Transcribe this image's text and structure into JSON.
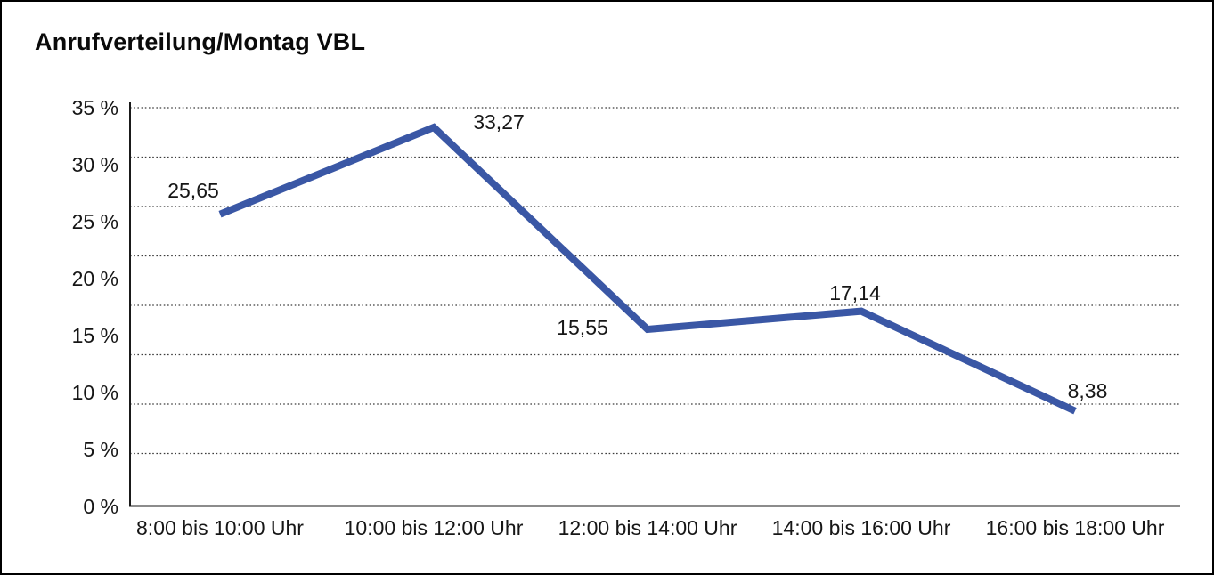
{
  "chart_data": {
    "type": "line",
    "title": "Anrufverteilung/Montag VBL",
    "categories": [
      "8:00 bis 10:00 Uhr",
      "10:00 bis 12:00 Uhr",
      "12:00 bis 14:00 Uhr",
      "14:00 bis 16:00 Uhr",
      "16:00 bis 18:00 Uhr"
    ],
    "values": [
      25.65,
      33.27,
      15.55,
      17.14,
      8.38
    ],
    "point_labels": [
      "25,65",
      "33,27",
      "15,55",
      "17,14",
      "8,38"
    ],
    "y_ticks": [
      "35 %",
      "30 %",
      "25 %",
      "20 %",
      "15 %",
      "10 %",
      "5 %",
      "0 %"
    ],
    "ylim": [
      0,
      35
    ],
    "y_tick_step": 5,
    "unit": "%",
    "decimal_separator": ",",
    "xlabel": "",
    "ylabel": "",
    "legend": "none",
    "grid": "horizontal-dotted",
    "line_color": "#3A57A5",
    "axis_color": "#1a1a1a",
    "background_color": "#ffffff",
    "border_color": "#000000"
  }
}
